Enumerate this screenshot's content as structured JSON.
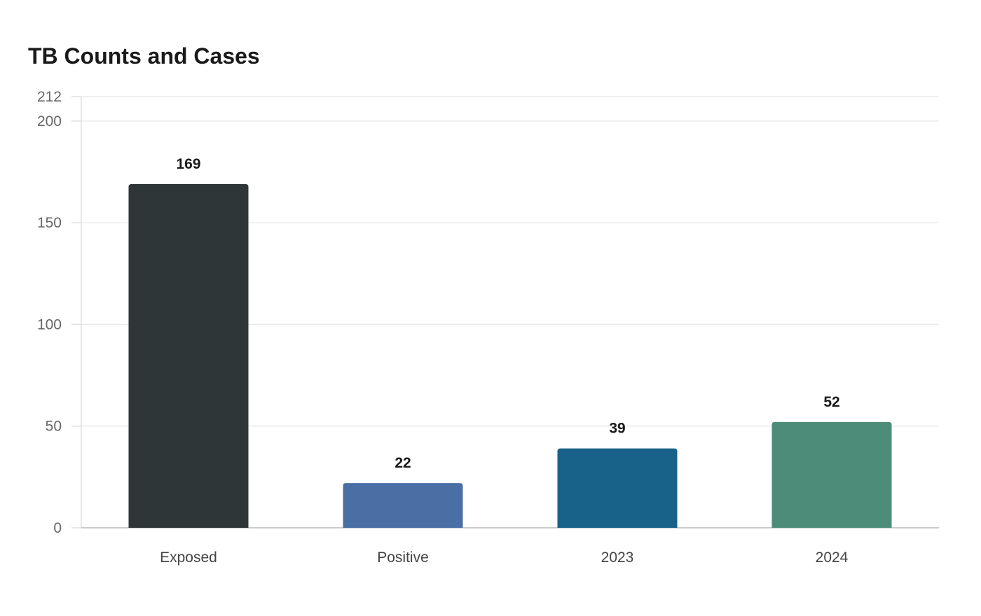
{
  "chart_data": {
    "type": "bar",
    "title": "TB Counts and Cases",
    "xlabel": "",
    "ylabel": "",
    "categories": [
      "Exposed",
      "Positive",
      "2023",
      "2024"
    ],
    "values": [
      169,
      22,
      39,
      52
    ],
    "colors": [
      "#2e3638",
      "#4a6fa5",
      "#186188",
      "#4e8c7a"
    ],
    "ylim": [
      0,
      212
    ],
    "yticks": [
      0,
      50,
      100,
      150,
      200,
      212
    ],
    "grid": true,
    "legend": "none"
  }
}
